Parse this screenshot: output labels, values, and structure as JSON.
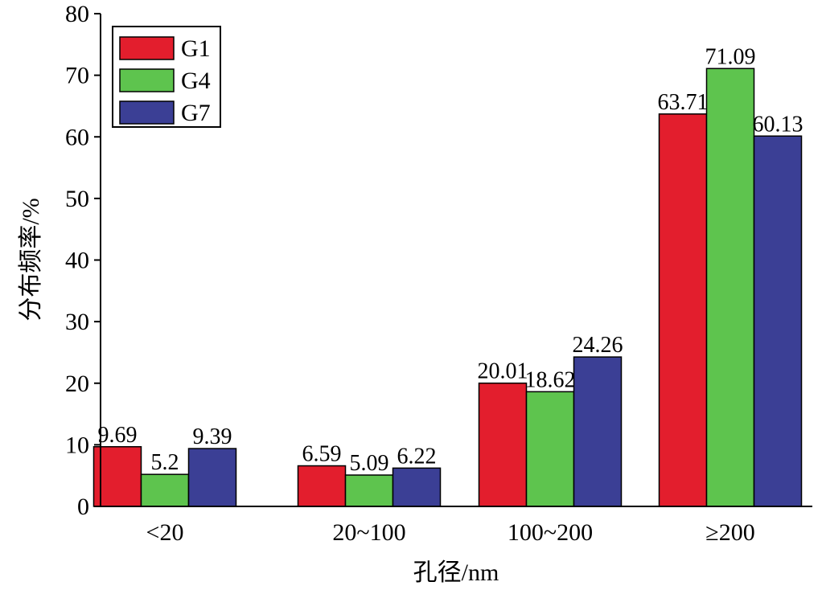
{
  "chart_data": {
    "type": "bar",
    "categories": [
      "<20",
      "20~100",
      "100~200",
      "≥200"
    ],
    "series": [
      {
        "name": "G1",
        "values": [
          9.69,
          6.59,
          20.01,
          63.71
        ],
        "labels": [
          "9.69",
          "6.59",
          "20.01",
          "63.71"
        ],
        "color": "#e31e2d"
      },
      {
        "name": "G4",
        "values": [
          5.2,
          5.09,
          18.62,
          71.09
        ],
        "labels": [
          "5.2",
          "5.09",
          "18.62",
          "71.09"
        ],
        "color": "#5ec44e"
      },
      {
        "name": "G7",
        "values": [
          9.39,
          6.22,
          24.26,
          60.13
        ],
        "labels": [
          "9.39",
          "6.22",
          "24.26",
          "60.13"
        ],
        "color": "#3b3f95"
      }
    ],
    "xlabel": "孔径/nm",
    "ylabel": "分布频率/%",
    "ylim": [
      0,
      80
    ],
    "yticks": [
      "0",
      "10",
      "20",
      "30",
      "40",
      "50",
      "60",
      "70",
      "80"
    ],
    "grid": false,
    "legend_position": "top-left"
  }
}
